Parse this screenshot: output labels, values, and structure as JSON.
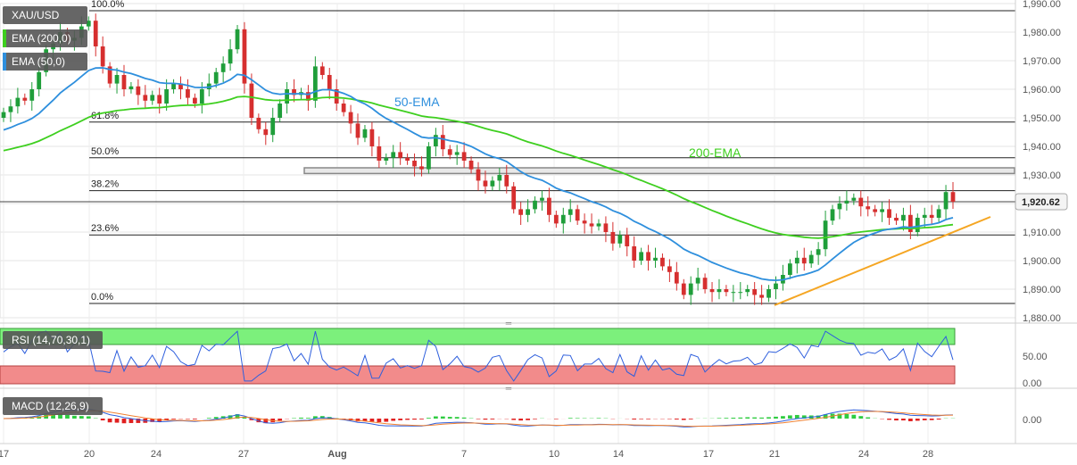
{
  "symbol": "XAU/USD",
  "legend": [
    {
      "label": "EMA (200,0)",
      "color": "#3ecf1f"
    },
    {
      "label": "EMA (50,0)",
      "color": "#2e8fdd"
    }
  ],
  "annotations": {
    "ema50_label": "50-EMA",
    "ema200_label": "200-EMA"
  },
  "fib_levels": [
    {
      "label": "100.0%",
      "value": 1987.5
    },
    {
      "label": "61.8%",
      "value": 1948.5
    },
    {
      "label": "50.0%",
      "value": 1936.0
    },
    {
      "label": "38.2%",
      "value": 1924.5
    },
    {
      "label": "23.6%",
      "value": 1909.0
    },
    {
      "label": "0.0%",
      "value": 1885.0
    }
  ],
  "current_price": {
    "label": "1,920.62",
    "value": 1920.62
  },
  "resistance_zone": [
    1930.5,
    1932.5
  ],
  "rsi": {
    "label": "RSI (14,70,30,1)",
    "ticks": [
      "50.00",
      "0.00"
    ],
    "overbought": 70,
    "oversold": 30
  },
  "macd": {
    "label": "MACD (12,26,9)",
    "ticks": [
      "0.00"
    ]
  },
  "chart_data": {
    "type": "candlestick",
    "ylim": [
      1880,
      1990
    ],
    "yticks": [
      "1,880.00",
      "1,890.00",
      "1,900.00",
      "1,910.00",
      "1,920.00",
      "1,930.00",
      "1,940.00",
      "1,950.00",
      "1,960.00",
      "1,970.00",
      "1,980.00",
      "1,990.00"
    ],
    "x_ticks": [
      "17",
      "20",
      "24",
      "27",
      "Aug",
      "7",
      "10",
      "14",
      "17",
      "21",
      "24",
      "28"
    ],
    "close": [
      1952,
      1954,
      1957,
      1956,
      1960,
      1966,
      1974,
      1976,
      1980,
      1977,
      1978,
      1982,
      1984,
      1975,
      1968,
      1962,
      1965,
      1960,
      1961,
      1958,
      1956,
      1958,
      1955,
      1960,
      1962,
      1960,
      1957,
      1955,
      1960,
      1962,
      1966,
      1969,
      1974,
      1981,
      1962,
      1950,
      1946,
      1944,
      1950,
      1955,
      1960,
      1958,
      1959,
      1956,
      1968,
      1965,
      1960,
      1955,
      1952,
      1948,
      1943,
      1946,
      1940,
      1935,
      1936,
      1938,
      1936,
      1935,
      1933,
      1932,
      1940,
      1944,
      1939,
      1937,
      1938,
      1935,
      1932,
      1928,
      1926,
      1928,
      1930,
      1926,
      1918,
      1916,
      1918,
      1921,
      1922,
      1916,
      1913,
      1916,
      1918,
      1914,
      1913,
      1912,
      1913,
      1910,
      1906,
      1909,
      1905,
      1900,
      1903,
      1900,
      1901,
      1898,
      1896,
      1892,
      1888,
      1892,
      1894,
      1890,
      1889,
      1890,
      1889,
      1889,
      1889,
      1890,
      1888,
      1887,
      1890,
      1892,
      1895,
      1899,
      1901,
      1899,
      1902,
      1904,
      1914,
      1918,
      1920,
      1921,
      1922,
      1919,
      1918,
      1917,
      1918,
      1915,
      1914,
      1916,
      1910,
      1915,
      1916,
      1915,
      1918,
      1924,
      1920.62
    ],
    "ema50_label": "50-EMA",
    "ema200_label": "200-EMA"
  }
}
